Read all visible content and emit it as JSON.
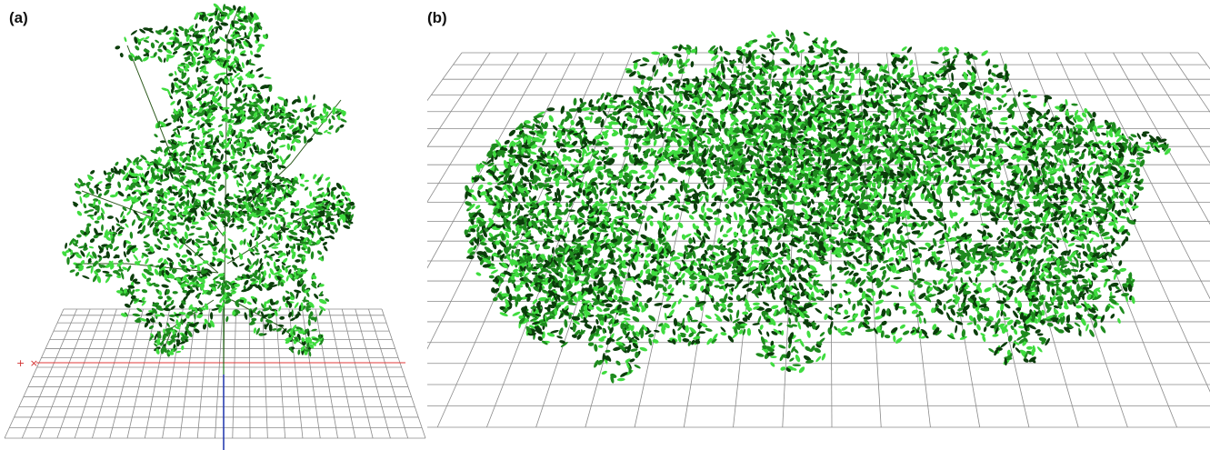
{
  "panels": [
    {
      "label": "(a)",
      "scene": "single-plant"
    },
    {
      "label": "(b)",
      "scene": "plant-canopy"
    }
  ],
  "axis_marker": "+ ×",
  "colors": {
    "grid": "#8a8a8a",
    "leaf_dark": "#0b3d0b",
    "leaf_mid": "#1e8a1e",
    "leaf_light": "#3fdc3f",
    "axis_x": "#e03a3a",
    "axis_y": "#1f7a1f",
    "axis_z": "#2a3fb0"
  }
}
